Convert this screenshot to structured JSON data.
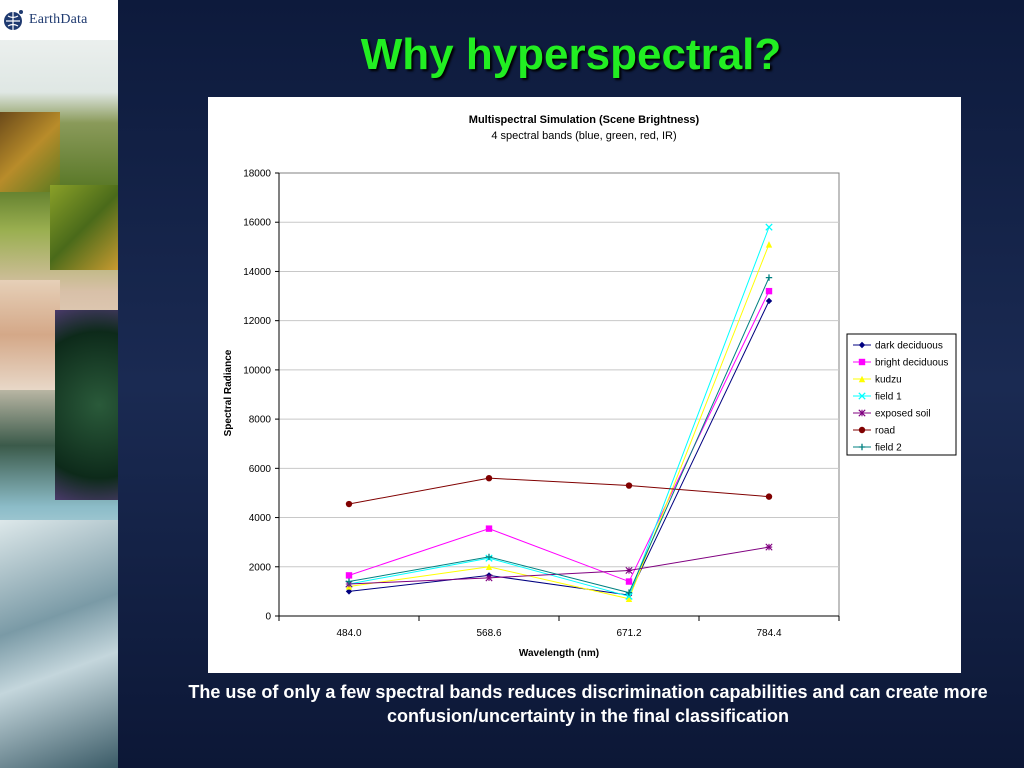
{
  "logo": {
    "text": "EarthData"
  },
  "slide": {
    "title": "Why hyperspectral?",
    "caption": "The use of only a few spectral bands reduces discrimination capabilities and can create more confusion/uncertainty in the final classification"
  },
  "chart_data": {
    "type": "line",
    "title": "Multispectral Simulation (Scene Brightness)",
    "subtitle": "4 spectral bands (blue, green, red, IR)",
    "xlabel": "Wavelength (nm)",
    "ylabel": "Spectral Radiance",
    "categories": [
      "484.0",
      "568.6",
      "671.2",
      "784.4"
    ],
    "ylim": [
      0,
      18000
    ],
    "yticks": [
      0,
      2000,
      4000,
      6000,
      8000,
      10000,
      12000,
      14000,
      16000,
      18000
    ],
    "grid": true,
    "legend_position": "right",
    "series": [
      {
        "name": "dark deciduous",
        "color": "#000080",
        "marker": "diamond",
        "values": [
          1000,
          1650,
          850,
          12800
        ]
      },
      {
        "name": "bright deciduous",
        "color": "#ff00ff",
        "marker": "square",
        "values": [
          1650,
          3550,
          1400,
          13200
        ]
      },
      {
        "name": "kudzu",
        "color": "#ffff00",
        "marker": "triangle",
        "values": [
          1200,
          2000,
          700,
          15100
        ]
      },
      {
        "name": "field 1",
        "color": "#00ffff",
        "marker": "x",
        "values": [
          1300,
          2350,
          800,
          15800
        ]
      },
      {
        "name": "exposed soil",
        "color": "#800080",
        "marker": "star",
        "values": [
          1300,
          1550,
          1850,
          2800
        ]
      },
      {
        "name": "road",
        "color": "#800000",
        "marker": "circle",
        "values": [
          4550,
          5600,
          5300,
          4850
        ]
      },
      {
        "name": "field 2",
        "color": "#008080",
        "marker": "plus",
        "values": [
          1400,
          2400,
          950,
          13750
        ]
      }
    ]
  }
}
